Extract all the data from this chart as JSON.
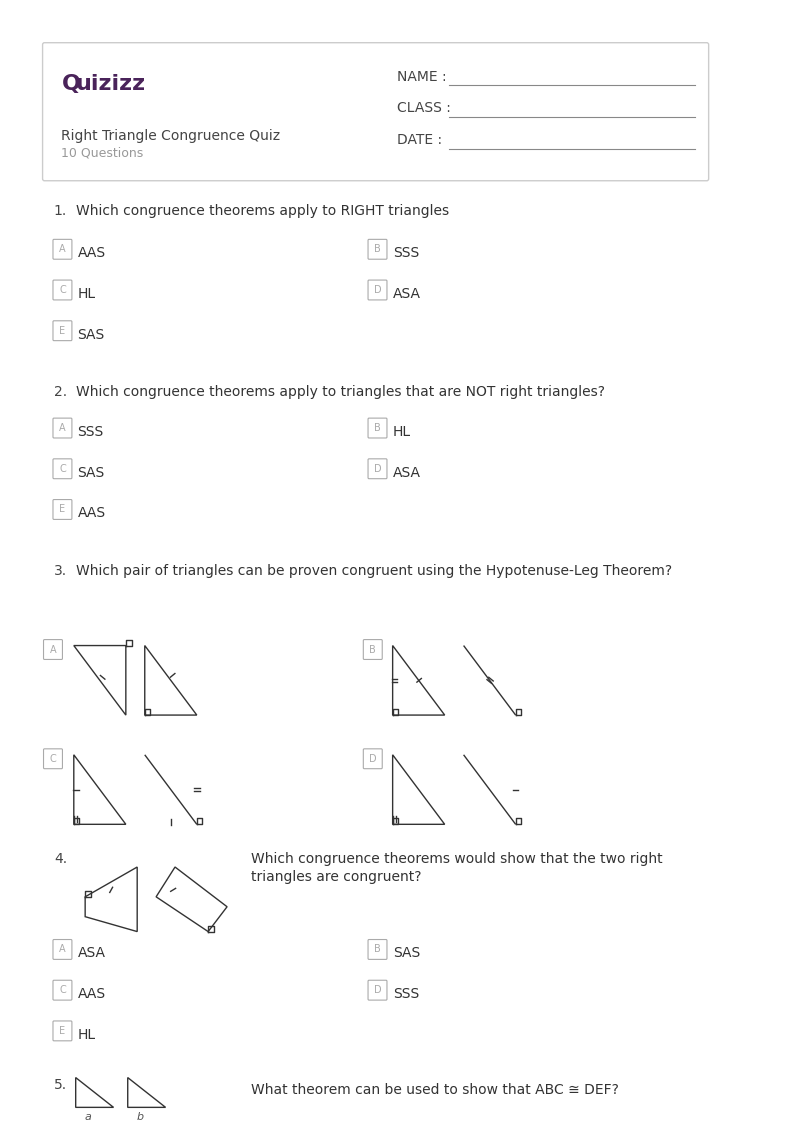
{
  "page_bg": "#ffffff",
  "border_color": "#cccccc",
  "logo_color": "#4a235a",
  "text_color": "#333333",
  "label_color": "#aaaaaa",
  "header": {
    "logo_text": "Quizizz",
    "title": "Right Triangle Congruence Quiz",
    "subtitle": "10 Questions",
    "name_label": "NAME :",
    "class_label": "CLASS :",
    "date_label": "DATE :"
  },
  "questions": [
    {
      "number": "1.",
      "text": "Which congruence theorems apply to RIGHT triangles",
      "options": [
        {
          "letter": "A",
          "text": "AAS"
        },
        {
          "letter": "B",
          "text": "SSS"
        },
        {
          "letter": "C",
          "text": "HL"
        },
        {
          "letter": "D",
          "text": "ASA"
        },
        {
          "letter": "E",
          "text": "SAS"
        }
      ],
      "has_image": false
    },
    {
      "number": "2.",
      "text": "Which congruence theorems apply to triangles that are NOT right triangles?",
      "options": [
        {
          "letter": "A",
          "text": "SSS"
        },
        {
          "letter": "B",
          "text": "HL"
        },
        {
          "letter": "C",
          "text": "SAS"
        },
        {
          "letter": "D",
          "text": "ASA"
        },
        {
          "letter": "E",
          "text": "AAS"
        }
      ],
      "has_image": false
    },
    {
      "number": "3.",
      "text": "Which pair of triangles can be proven congruent using the Hypotenuse-Leg Theorem?",
      "options": [
        {
          "letter": "A",
          "text": "",
          "image_type": "triangle_pair_A"
        },
        {
          "letter": "B",
          "text": "",
          "image_type": "triangle_pair_B"
        },
        {
          "letter": "C",
          "text": "",
          "image_type": "triangle_pair_C"
        },
        {
          "letter": "D",
          "text": "",
          "image_type": "triangle_pair_D"
        }
      ],
      "has_image": true
    },
    {
      "number": "4.",
      "text": "Which congruence theorems would show that the two right\ntriangles are congruent?",
      "options": [
        {
          "letter": "A",
          "text": "ASA"
        },
        {
          "letter": "B",
          "text": "SAS"
        },
        {
          "letter": "C",
          "text": "AAS"
        },
        {
          "letter": "D",
          "text": "SSS"
        },
        {
          "letter": "E",
          "text": "HL"
        }
      ],
      "has_image": true,
      "image_type": "parallelogram_pair"
    },
    {
      "number": "5.",
      "text": "What theorem can be used to show that ABC ≅ DEF?",
      "has_image": true,
      "image_type": "triangle_q5",
      "options": []
    }
  ]
}
